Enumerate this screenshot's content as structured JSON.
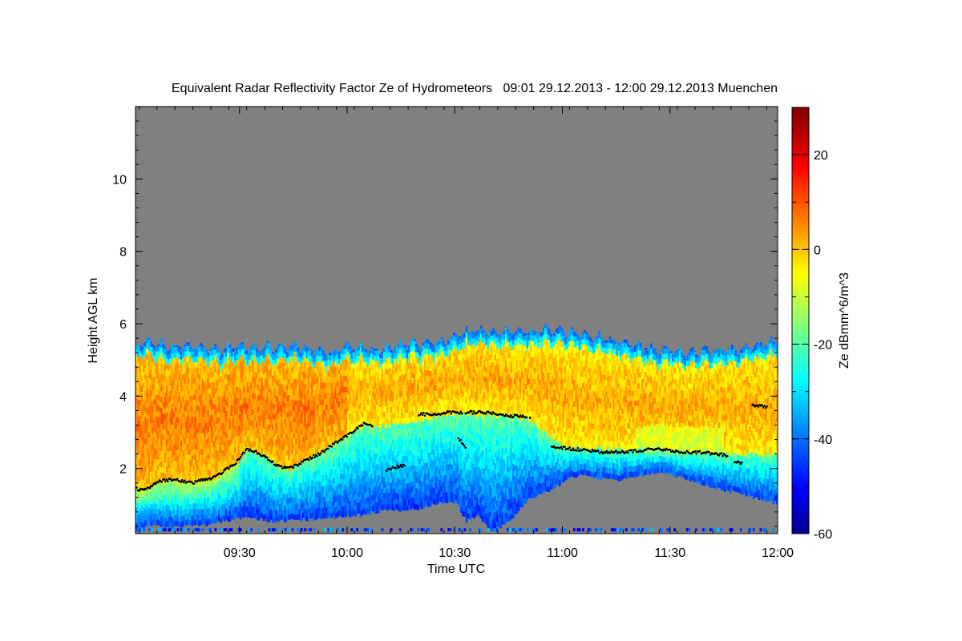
{
  "chart_data": {
    "type": "heatmap",
    "title": "Equivalent Radar Reflectivity Factor Ze of Hydrometeors   09:01 29.12.2013 - 12:00 29.12.2013 Muenchen",
    "xlabel": "Time UTC",
    "ylabel": "Height AGL km",
    "x_range_minutes_utc": [
      541,
      720
    ],
    "x_ticks": [
      {
        "minute": 570,
        "label": "09:30"
      },
      {
        "minute": 600,
        "label": "10:00"
      },
      {
        "minute": 630,
        "label": "10:30"
      },
      {
        "minute": 660,
        "label": "11:00"
      },
      {
        "minute": 690,
        "label": "11:30"
      },
      {
        "minute": 720,
        "label": "12:00"
      }
    ],
    "ylim": [
      0.2,
      12.0
    ],
    "y_ticks": [
      2,
      4,
      6,
      8,
      10
    ],
    "colorbar": {
      "label": "Ze dBmm^6/m^3",
      "range": [
        -60,
        30
      ],
      "ticks": [
        -60,
        -40,
        -20,
        0,
        20
      ],
      "colormap": "jet"
    },
    "no_data_color": "#808080",
    "cloud_top_km": [
      [
        541,
        5.4
      ],
      [
        545,
        5.5
      ],
      [
        550,
        5.35
      ],
      [
        555,
        5.4
      ],
      [
        560,
        5.3
      ],
      [
        565,
        5.3
      ],
      [
        570,
        5.35
      ],
      [
        575,
        5.3
      ],
      [
        580,
        5.35
      ],
      [
        585,
        5.4
      ],
      [
        590,
        5.3
      ],
      [
        595,
        5.2
      ],
      [
        600,
        5.35
      ],
      [
        605,
        5.3
      ],
      [
        610,
        5.3
      ],
      [
        615,
        5.4
      ],
      [
        620,
        5.45
      ],
      [
        625,
        5.5
      ],
      [
        630,
        5.65
      ],
      [
        635,
        5.8
      ],
      [
        640,
        5.8
      ],
      [
        645,
        5.75
      ],
      [
        650,
        5.75
      ],
      [
        655,
        5.85
      ],
      [
        660,
        5.8
      ],
      [
        665,
        5.7
      ],
      [
        670,
        5.6
      ],
      [
        675,
        5.5
      ],
      [
        680,
        5.4
      ],
      [
        685,
        5.3
      ],
      [
        690,
        5.25
      ],
      [
        695,
        5.2
      ],
      [
        700,
        5.25
      ],
      [
        705,
        5.3
      ],
      [
        710,
        5.3
      ],
      [
        715,
        5.45
      ],
      [
        720,
        5.5
      ]
    ],
    "cloud_base_km": [
      [
        541,
        0.35
      ],
      [
        545,
        0.5
      ],
      [
        550,
        0.45
      ],
      [
        555,
        0.45
      ],
      [
        560,
        0.5
      ],
      [
        565,
        0.6
      ],
      [
        570,
        0.7
      ],
      [
        575,
        0.65
      ],
      [
        580,
        0.6
      ],
      [
        585,
        0.65
      ],
      [
        590,
        0.65
      ],
      [
        595,
        0.7
      ],
      [
        600,
        0.75
      ],
      [
        605,
        0.8
      ],
      [
        610,
        0.9
      ],
      [
        615,
        0.9
      ],
      [
        620,
        0.95
      ],
      [
        625,
        1.1
      ],
      [
        630,
        1.15
      ],
      [
        633,
        0.6
      ],
      [
        636,
        0.8
      ],
      [
        640,
        0.3
      ],
      [
        645,
        0.6
      ],
      [
        650,
        1.2
      ],
      [
        655,
        1.4
      ],
      [
        660,
        1.7
      ],
      [
        665,
        1.9
      ],
      [
        670,
        1.8
      ],
      [
        675,
        1.75
      ],
      [
        680,
        1.8
      ],
      [
        685,
        1.95
      ],
      [
        690,
        1.9
      ],
      [
        695,
        1.75
      ],
      [
        700,
        1.6
      ],
      [
        705,
        1.45
      ],
      [
        710,
        1.35
      ],
      [
        715,
        1.2
      ],
      [
        720,
        1.1
      ]
    ],
    "melting_layer_km": [
      [
        541,
        1.45
      ],
      [
        543,
        1.4
      ],
      [
        545,
        1.5
      ],
      [
        548,
        1.65
      ],
      [
        551,
        1.7
      ],
      [
        554,
        1.65
      ],
      [
        557,
        1.6
      ],
      [
        560,
        1.7
      ],
      [
        563,
        1.75
      ],
      [
        566,
        1.95
      ],
      [
        569,
        2.15
      ],
      [
        572,
        2.55
      ],
      [
        575,
        2.45
      ],
      [
        578,
        2.25
      ],
      [
        581,
        2.05
      ],
      [
        584,
        2.0
      ],
      [
        587,
        2.15
      ],
      [
        590,
        2.3
      ],
      [
        593,
        2.45
      ],
      [
        596,
        2.65
      ],
      [
        599,
        2.85
      ],
      [
        602,
        3.05
      ],
      [
        605,
        3.25
      ],
      [
        607,
        3.15
      ]
    ],
    "melting_layer_segments_km": [
      [
        [
          611,
          1.95
        ],
        [
          614,
          2.05
        ],
        [
          616,
          2.1
        ]
      ],
      [
        [
          620,
          3.5
        ],
        [
          624,
          3.5
        ],
        [
          628,
          3.55
        ],
        [
          632,
          3.55
        ]
      ],
      [
        [
          631,
          2.85
        ],
        [
          633,
          2.6
        ]
      ],
      [
        [
          633,
          3.55
        ],
        [
          638,
          3.55
        ],
        [
          642,
          3.5
        ],
        [
          646,
          3.45
        ],
        [
          650,
          3.45
        ]
      ],
      [
        [
          651,
          3.4
        ]
      ],
      [
        [
          657,
          2.6
        ],
        [
          662,
          2.55
        ],
        [
          667,
          2.5
        ],
        [
          672,
          2.45
        ],
        [
          677,
          2.45
        ],
        [
          682,
          2.5
        ],
        [
          686,
          2.55
        ],
        [
          690,
          2.5
        ],
        [
          694,
          2.45
        ],
        [
          699,
          2.45
        ],
        [
          703,
          2.4
        ],
        [
          706,
          2.35
        ]
      ],
      [
        [
          708,
          2.2
        ],
        [
          710,
          2.15
        ]
      ],
      [
        [
          713,
          3.75
        ],
        [
          717,
          3.7
        ]
      ]
    ],
    "surface_clutter_km": 0.35
  }
}
